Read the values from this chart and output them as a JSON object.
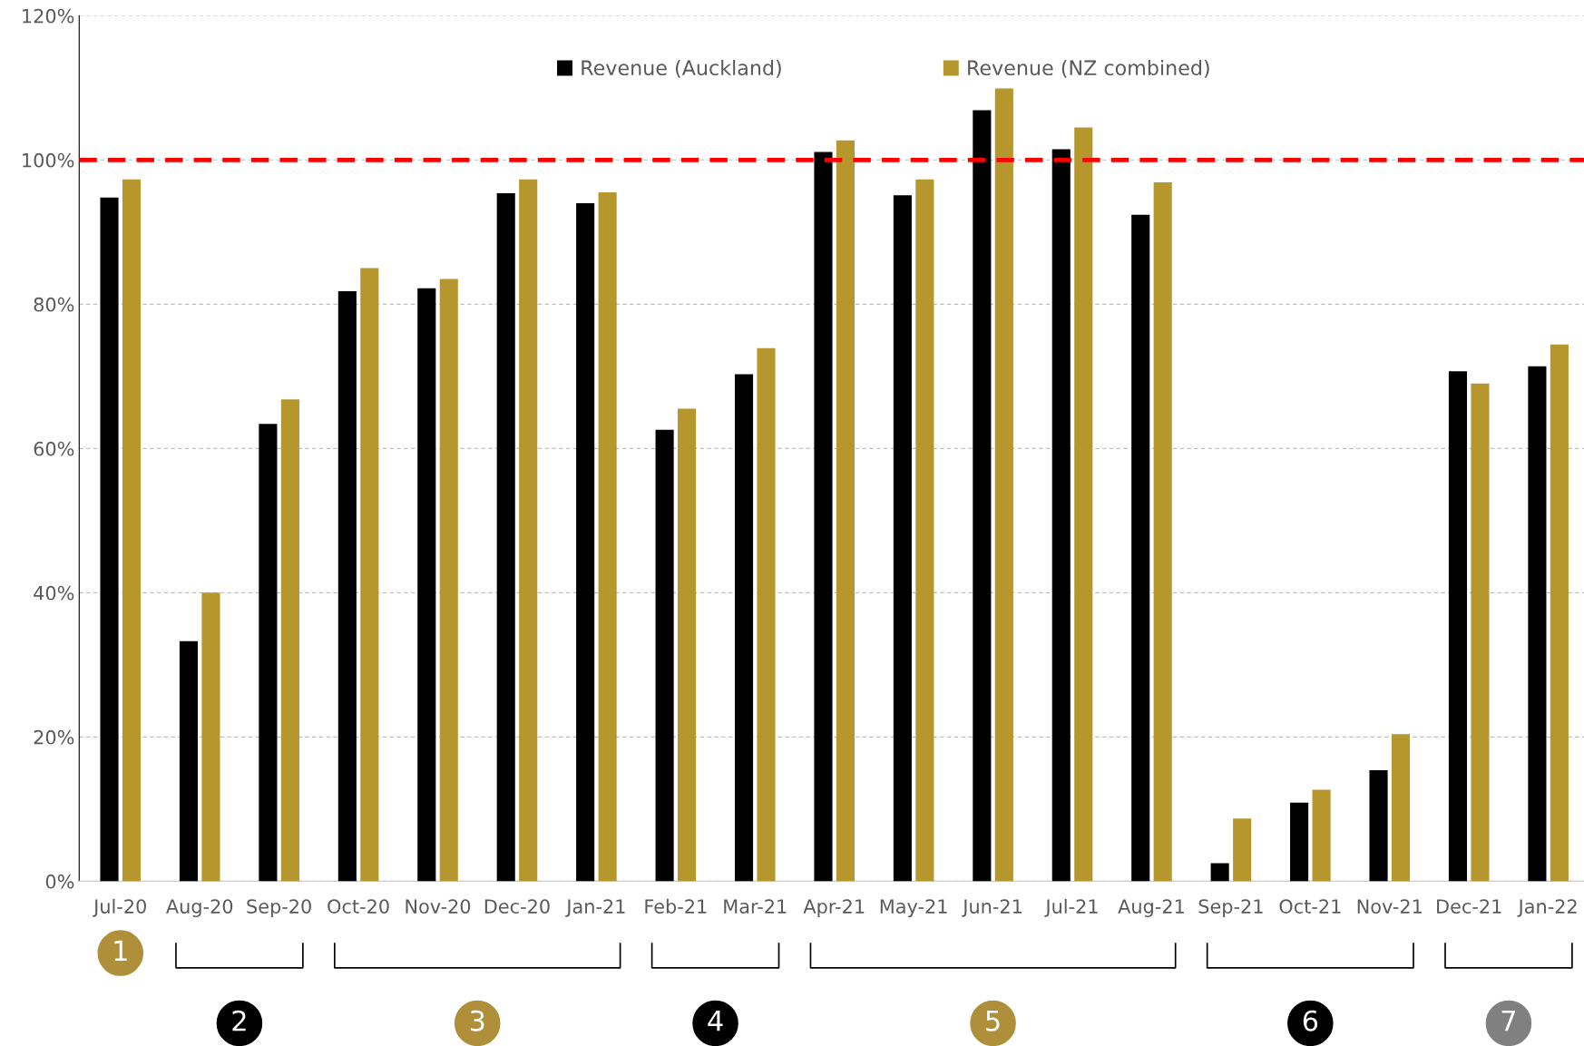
{
  "chart_data": {
    "type": "bar",
    "categories": [
      "Jul-20",
      "Aug-20",
      "Sep-20",
      "Oct-20",
      "Nov-20",
      "Dec-20",
      "Jan-21",
      "Feb-21",
      "Mar-21",
      "Apr-21",
      "May-21",
      "Jun-21",
      "Jul-21",
      "Aug-21",
      "Sep-21",
      "Oct-21",
      "Nov-21",
      "Dec-21",
      "Jan-22"
    ],
    "series": [
      {
        "name": "Revenue (Auckland)",
        "color": "#000000",
        "values": [
          94.8,
          33.3,
          63.4,
          81.8,
          82.2,
          95.4,
          94,
          62.6,
          70.3,
          101.1,
          95.1,
          106.9,
          101.5,
          92.4,
          2.5,
          10.9,
          15.4,
          70.7,
          71.4
        ]
      },
      {
        "name": "Revenue (NZ combined)",
        "color": "#b5972e",
        "values": [
          97.3,
          40,
          66.8,
          85,
          83.5,
          97.3,
          95.5,
          65.5,
          73.9,
          102.7,
          97.3,
          109.9,
          104.5,
          96.9,
          8.7,
          12.7,
          20.4,
          69,
          74.4
        ]
      }
    ],
    "ylim": [
      0,
      120
    ],
    "yticks": [
      {
        "value": 0,
        "label": "0%"
      },
      {
        "value": 20,
        "label": "20%"
      },
      {
        "value": 40,
        "label": "40%"
      },
      {
        "value": 60,
        "label": "60%"
      },
      {
        "value": 80,
        "label": "80%"
      },
      {
        "value": 100,
        "label": "100%"
      },
      {
        "value": 120,
        "label": "120%"
      }
    ],
    "grid": "y",
    "legend": "top",
    "ref_lines": [
      {
        "axis": "y",
        "value": 100,
        "color": "#ff0000",
        "line_style": "dashed"
      }
    ],
    "annotations": [
      "1",
      "2",
      "3",
      "4",
      "5",
      "6",
      "7"
    ]
  }
}
